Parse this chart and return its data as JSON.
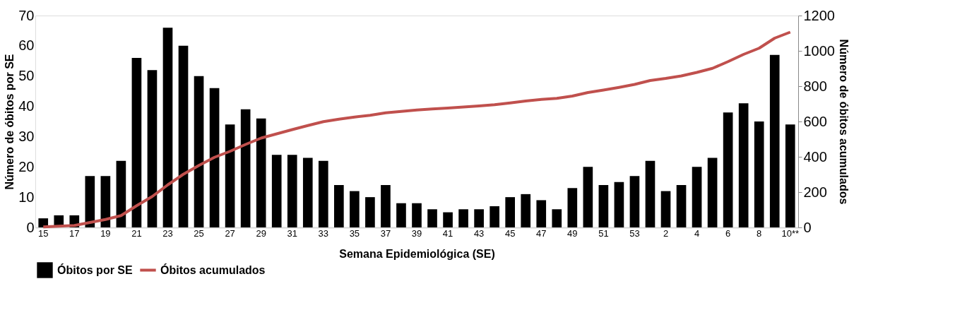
{
  "chart_data": {
    "type": "bar",
    "xlabel": "Semana Epidemiológica (SE)",
    "ylabel": "Número de óbitos por SE",
    "y2label": "Número de óbitos acumulados",
    "categories": [
      "15",
      null,
      "17",
      null,
      "19",
      null,
      "21",
      null,
      "23",
      null,
      "25",
      null,
      "27",
      null,
      "29",
      null,
      "31",
      null,
      "33",
      null,
      "35",
      null,
      "37",
      null,
      "39",
      null,
      "41",
      null,
      "43",
      null,
      "45",
      null,
      "47",
      null,
      "49",
      null,
      "51",
      null,
      "53",
      null,
      "2",
      null,
      "4",
      null,
      "6",
      null,
      "8",
      null,
      "10**"
    ],
    "series": [
      {
        "name": "Óbitos por SE",
        "color": "#000000",
        "values": [
          3,
          4,
          4,
          17,
          17,
          22,
          56,
          52,
          66,
          60,
          50,
          46,
          34,
          39,
          36,
          24,
          24,
          23,
          22,
          14,
          12,
          10,
          14,
          8,
          8,
          6,
          5,
          6,
          6,
          7,
          10,
          11,
          9,
          6,
          13,
          20,
          14,
          15,
          17,
          22,
          12,
          14,
          20,
          23,
          38,
          41,
          35,
          57,
          34
        ]
      },
      {
        "name": "Óbitos acumulados",
        "type": "line",
        "axis": "y2",
        "color": "#c0504d",
        "values": [
          3,
          7,
          11,
          28,
          45,
          67,
          123,
          175,
          241,
          301,
          351,
          397,
          431,
          470,
          506,
          530,
          554,
          577,
          599,
          613,
          625,
          635,
          649,
          657,
          665,
          671,
          676,
          682,
          688,
          695,
          705,
          716,
          725,
          731,
          744,
          764,
          778,
          793,
          810,
          832,
          844,
          858,
          878,
          901,
          939,
          980,
          1015,
          1072,
          1106
        ]
      }
    ],
    "ylim": [
      0,
      70
    ],
    "yticks": [
      0,
      10,
      20,
      30,
      40,
      50,
      60,
      70
    ],
    "y2lim": [
      0,
      1200
    ],
    "y2ticks": [
      0,
      200,
      400,
      600,
      800,
      1000,
      1200
    ],
    "grid": false,
    "legend": "bottom",
    "marker": "none",
    "line_style": "solid"
  }
}
